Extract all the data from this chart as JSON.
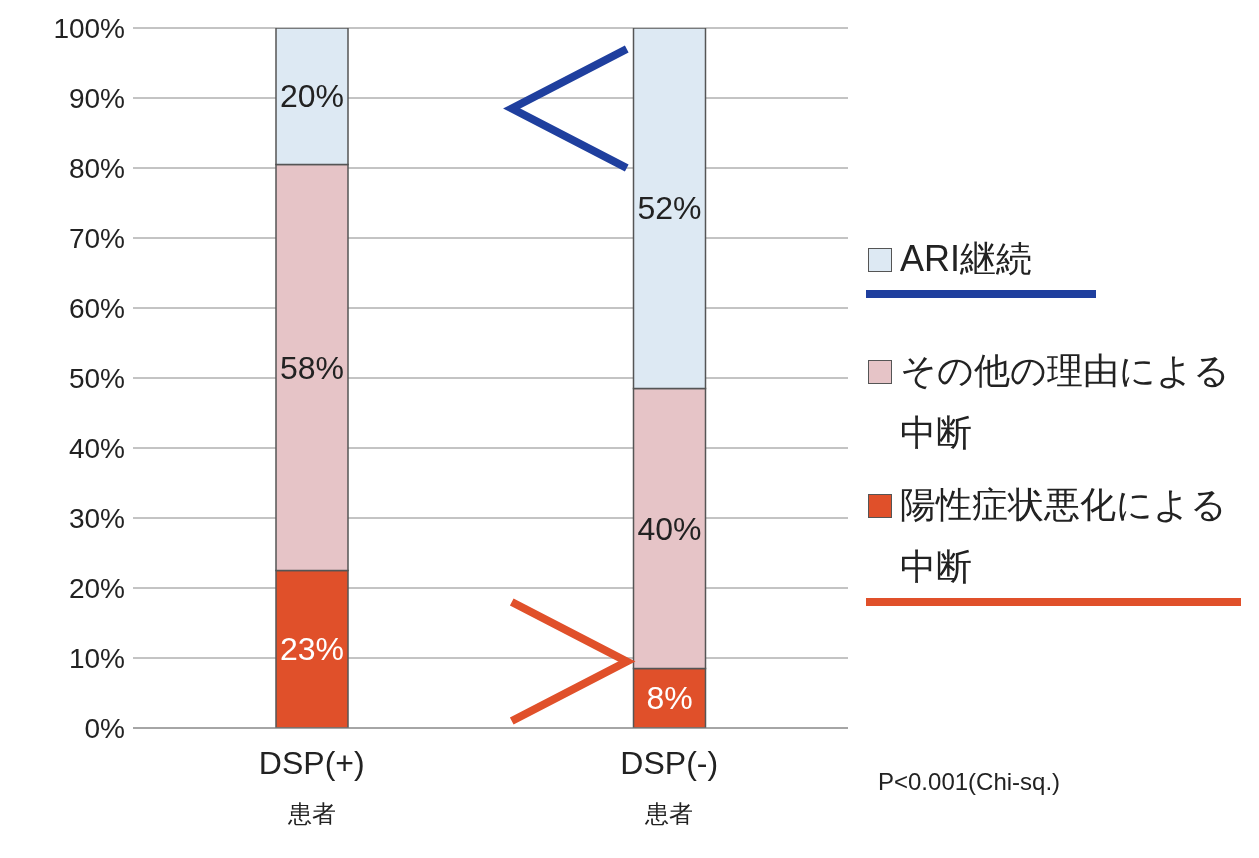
{
  "chart_data": {
    "type": "bar",
    "stacked": true,
    "categories": [
      "DSP(+)\n患者",
      "DSP(-)\n患者"
    ],
    "series": [
      {
        "name": "陽性症状悪化による中断",
        "color": "#e0502a",
        "values": [
          22.5,
          8.5
        ],
        "value_labels": [
          "23%",
          "8%"
        ]
      },
      {
        "name": "その他の理由による中断",
        "color": "#e6c4c7",
        "values": [
          58,
          40
        ],
        "value_labels": [
          "58%",
          "40%"
        ]
      },
      {
        "name": "ARI継続",
        "color": "#dde9f3",
        "values": [
          19.5,
          51.5
        ],
        "value_labels": [
          "20%",
          "52%"
        ]
      }
    ],
    "ylim": [
      0,
      100
    ],
    "yticks": [
      {
        "value": 0,
        "label": "0%"
      },
      {
        "value": 10,
        "label": "10%"
      },
      {
        "value": 20,
        "label": "20%"
      },
      {
        "value": 30,
        "label": "30%"
      },
      {
        "value": 40,
        "label": "40%"
      },
      {
        "value": 50,
        "label": "50%"
      },
      {
        "value": 60,
        "label": "60%"
      },
      {
        "value": 70,
        "label": "70%"
      },
      {
        "value": 80,
        "label": "80%"
      },
      {
        "value": 90,
        "label": "90%"
      },
      {
        "value": 100,
        "label": "100%"
      }
    ],
    "grid": "y",
    "legend": "right",
    "annotations": [
      "P<0.001(Chi-sq.)"
    ]
  }
}
